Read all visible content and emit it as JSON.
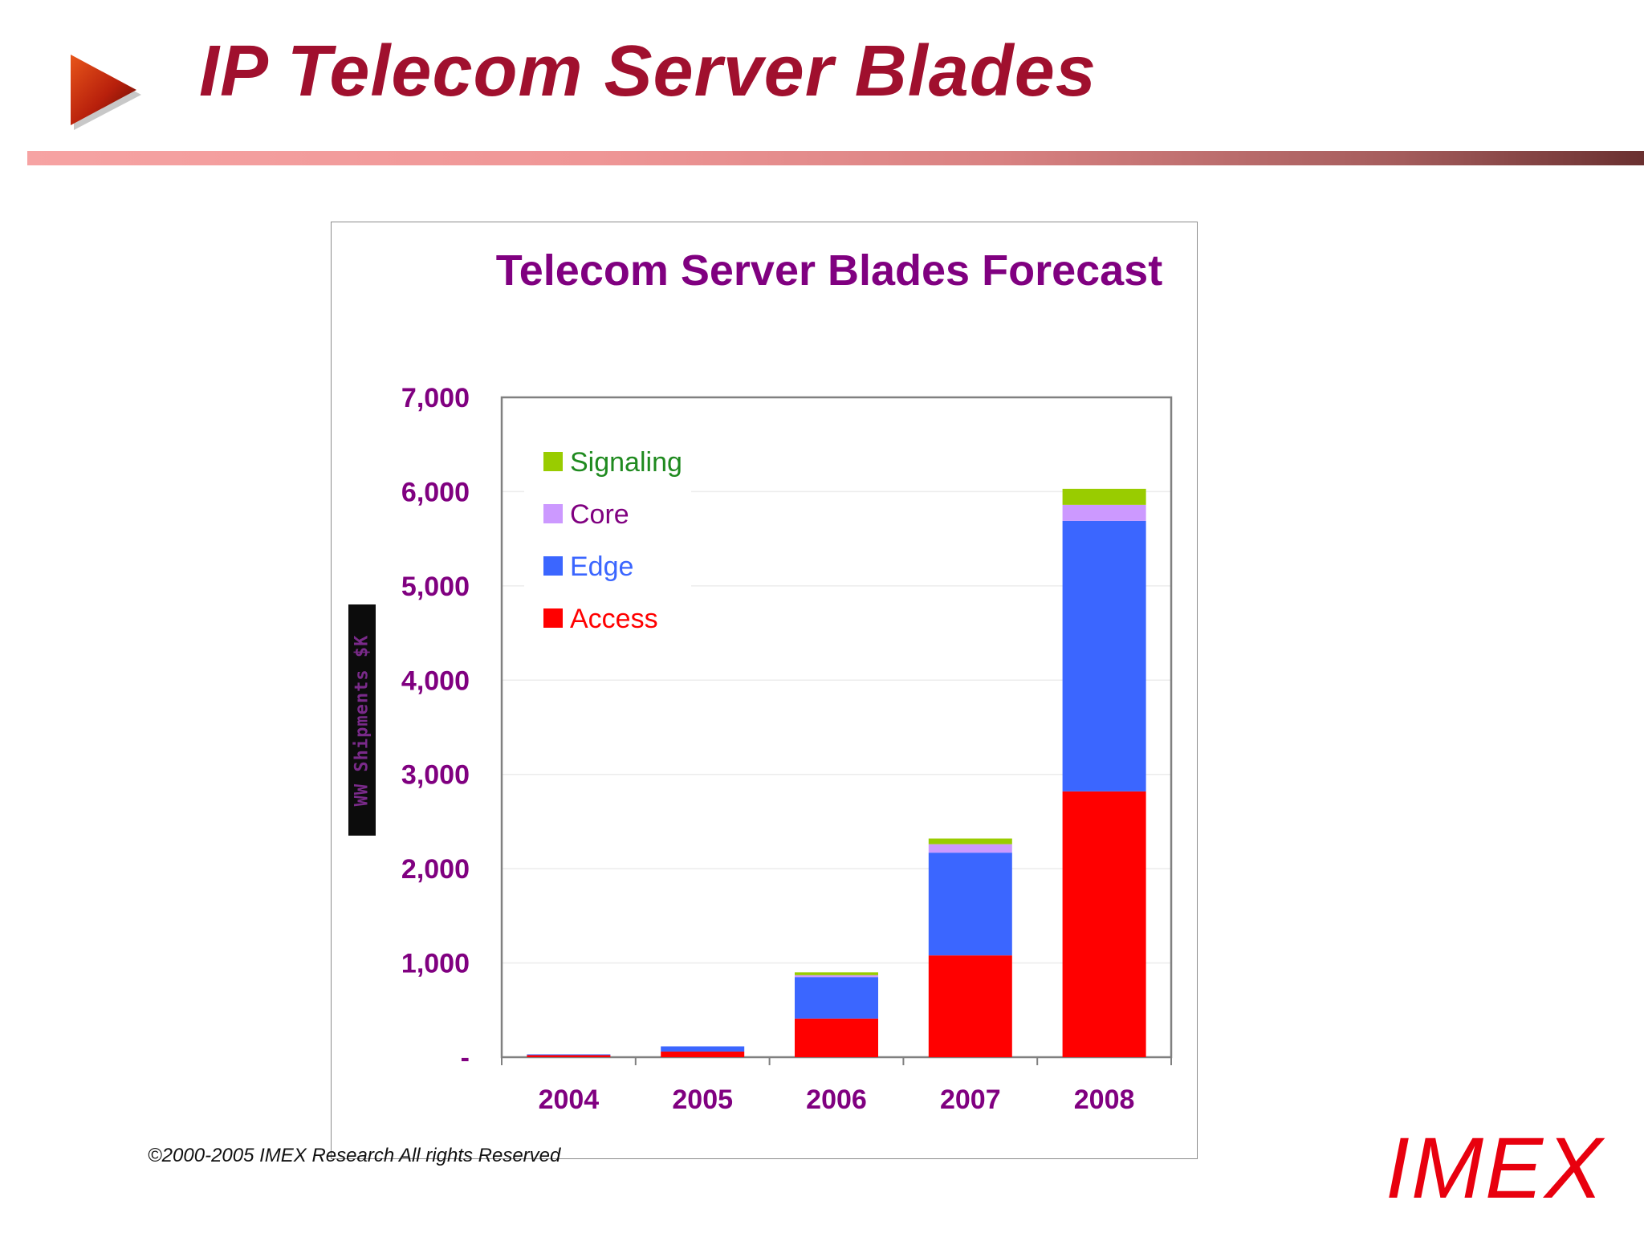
{
  "slide": {
    "title": "IP Telecom Server Blades",
    "copyright": "©2000-2005  IMEX Research All rights Reserved",
    "brand": "IMEX",
    "bullet_icon": "play-triangle-icon",
    "title_color": "#a0102e",
    "brand_color": "#e8000e"
  },
  "chart_data": {
    "type": "bar",
    "stacked": true,
    "title": "Telecom Server Blades Forecast",
    "ylabel": "WW Shipments $K",
    "xlabel": "",
    "categories": [
      "2004",
      "2005",
      "2006",
      "2007",
      "2008"
    ],
    "ylim": [
      0,
      7000
    ],
    "yticks": [
      0,
      1000,
      2000,
      3000,
      4000,
      5000,
      6000,
      7000
    ],
    "ytick_labels": [
      "-",
      "1,000",
      "2,000",
      "3,000",
      "4,000",
      "5,000",
      "6,000",
      "7,000"
    ],
    "grid": true,
    "legend_position": "top-left",
    "series": [
      {
        "name": "Access",
        "color": "#ff0000",
        "values": [
          25,
          60,
          410,
          1080,
          2820
        ]
      },
      {
        "name": "Edge",
        "color": "#3b66ff",
        "values": [
          5,
          55,
          440,
          1090,
          2870
        ]
      },
      {
        "name": "Core",
        "color": "#cc99ff",
        "values": [
          0,
          0,
          20,
          90,
          170
        ]
      },
      {
        "name": "Signaling",
        "color": "#99cc00",
        "values": [
          0,
          0,
          30,
          60,
          170
        ]
      }
    ],
    "legend_order": [
      "Signaling",
      "Core",
      "Edge",
      "Access"
    ],
    "legend_text_colors": {
      "Signaling": "#1f8a1f",
      "Core": "#800080",
      "Edge": "#3b66ff",
      "Access": "#ff0000"
    },
    "title_color": "#800080",
    "axis_label_color": "#800080"
  }
}
